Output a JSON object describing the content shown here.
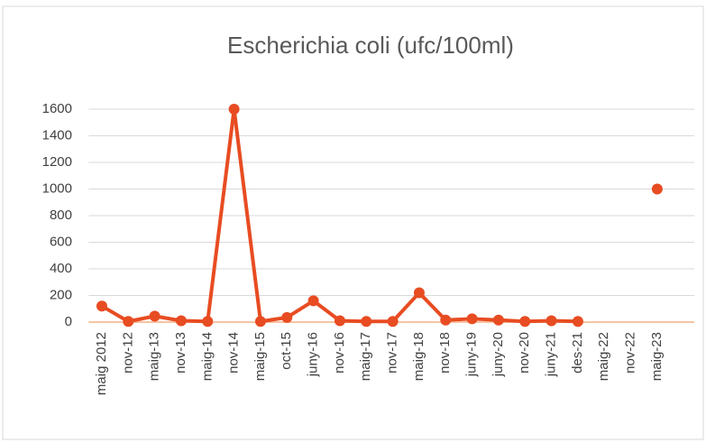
{
  "chart_data": {
    "type": "line",
    "title": "Escherichia coli (ufc/100ml)",
    "categories": [
      "maig 2012",
      "nov-12",
      "maig-13",
      "nov-13",
      "maig-14",
      "nov-14",
      "maig-15",
      "oct-15",
      "juny-16",
      "nov-16",
      "maig-17",
      "nov-17",
      "maig-18",
      "nov-18",
      "juny-19",
      "juny-20",
      "nov-20",
      "juny-21",
      "des-21",
      "maig-22",
      "nov-22",
      "maig-23"
    ],
    "series": [
      {
        "name": "Escherichia coli",
        "color": "#e84c22",
        "values": [
          120,
          5,
          45,
          10,
          5,
          1600,
          5,
          35,
          160,
          10,
          5,
          5,
          220,
          15,
          25,
          15,
          5,
          10,
          5,
          null,
          null,
          1000
        ]
      }
    ],
    "ylim": [
      0,
      1600
    ],
    "yticks": [
      0,
      200,
      400,
      600,
      800,
      1000,
      1200,
      1400,
      1600
    ],
    "grid": true
  }
}
